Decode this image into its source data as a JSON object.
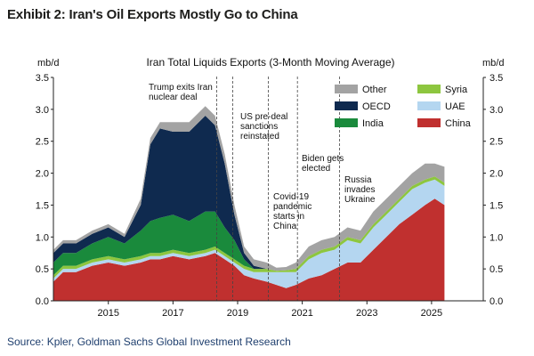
{
  "exhibit_title": "Exhibit 2: Iran's Oil Exports Mostly Go to China",
  "source": "Source: Kpler, Goldman Sachs Global Investment Research",
  "chart_data": {
    "type": "area",
    "title": "Iran Total Liquids Exports (3-Month Moving Average)",
    "ylabel_left": "mb/d",
    "ylabel_right": "mb/d",
    "ylim": [
      0,
      3.5
    ],
    "yticks": [
      0.0,
      0.5,
      1.0,
      1.5,
      2.0,
      2.5,
      3.0,
      3.5
    ],
    "ytick_labels": [
      "0.0",
      "0.5",
      "1.0",
      "1.5",
      "2.0",
      "2.5",
      "3.0",
      "3.5"
    ],
    "xlim": [
      2013.3,
      2026.6
    ],
    "xticks": [
      2015,
      2017,
      2019,
      2021,
      2023,
      2025
    ],
    "xtick_labels": [
      "2015",
      "2017",
      "2019",
      "2021",
      "2023",
      "2025"
    ],
    "stacked": true,
    "legend_placement": "top-right",
    "x": [
      2013.3,
      2013.6,
      2014.0,
      2014.5,
      2015.0,
      2015.5,
      2016.0,
      2016.3,
      2016.6,
      2017.0,
      2017.5,
      2018.0,
      2018.3,
      2018.6,
      2018.9,
      2019.2,
      2019.5,
      2019.9,
      2020.2,
      2020.5,
      2020.8,
      2021.2,
      2021.6,
      2022.0,
      2022.4,
      2022.8,
      2023.2,
      2023.6,
      2024.0,
      2024.4,
      2024.8,
      2025.1,
      2025.4
    ],
    "series": [
      {
        "name": "China",
        "color": "#c0302f",
        "values": [
          0.3,
          0.45,
          0.45,
          0.55,
          0.6,
          0.55,
          0.6,
          0.65,
          0.65,
          0.7,
          0.65,
          0.7,
          0.75,
          0.65,
          0.55,
          0.4,
          0.35,
          0.3,
          0.25,
          0.2,
          0.25,
          0.35,
          0.4,
          0.5,
          0.6,
          0.6,
          0.8,
          1.0,
          1.2,
          1.35,
          1.5,
          1.6,
          1.5
        ]
      },
      {
        "name": "UAE",
        "color": "#b4d6f0",
        "values": [
          0.05,
          0.05,
          0.05,
          0.05,
          0.05,
          0.05,
          0.05,
          0.05,
          0.05,
          0.05,
          0.05,
          0.05,
          0.05,
          0.05,
          0.05,
          0.1,
          0.1,
          0.15,
          0.2,
          0.25,
          0.2,
          0.3,
          0.35,
          0.3,
          0.35,
          0.3,
          0.35,
          0.35,
          0.35,
          0.4,
          0.35,
          0.3,
          0.3
        ]
      },
      {
        "name": "Syria",
        "color": "#8dc63f",
        "values": [
          0.05,
          0.05,
          0.05,
          0.05,
          0.05,
          0.05,
          0.05,
          0.05,
          0.05,
          0.05,
          0.05,
          0.05,
          0.05,
          0.05,
          0.05,
          0.05,
          0.05,
          0.05,
          0.02,
          0.03,
          0.05,
          0.05,
          0.05,
          0.05,
          0.05,
          0.05,
          0.05,
          0.05,
          0.05,
          0.05,
          0.05,
          0.05,
          0.05
        ]
      },
      {
        "name": "India",
        "color": "#1a8a3c",
        "values": [
          0.2,
          0.2,
          0.2,
          0.25,
          0.3,
          0.25,
          0.4,
          0.5,
          0.55,
          0.55,
          0.5,
          0.6,
          0.55,
          0.4,
          0.3,
          0.1,
          0.0,
          0.0,
          0.0,
          0.0,
          0.0,
          0.0,
          0.0,
          0.0,
          0.0,
          0.0,
          0.0,
          0.0,
          0.0,
          0.0,
          0.0,
          0.0,
          0.0
        ]
      },
      {
        "name": "OECD",
        "color": "#0f2a4f",
        "values": [
          0.15,
          0.15,
          0.15,
          0.15,
          0.15,
          0.1,
          0.4,
          1.2,
          1.4,
          1.3,
          1.4,
          1.5,
          1.35,
          1.0,
          0.4,
          0.1,
          0.05,
          0.0,
          0.0,
          0.0,
          0.0,
          0.0,
          0.0,
          0.0,
          0.0,
          0.0,
          0.0,
          0.0,
          0.0,
          0.0,
          0.0,
          0.0,
          0.0
        ]
      },
      {
        "name": "Other",
        "color": "#a3a3a3",
        "values": [
          0.05,
          0.05,
          0.05,
          0.05,
          0.05,
          0.05,
          0.1,
          0.1,
          0.1,
          0.15,
          0.15,
          0.15,
          0.15,
          0.15,
          0.15,
          0.1,
          0.1,
          0.1,
          0.05,
          0.05,
          0.1,
          0.15,
          0.15,
          0.15,
          0.15,
          0.15,
          0.2,
          0.2,
          0.2,
          0.2,
          0.25,
          0.2,
          0.25
        ]
      }
    ],
    "events": [
      {
        "x": 2018.35,
        "label": [
          "Trump exits Iran",
          "nuclear deal"
        ]
      },
      {
        "x": 2018.85,
        "label": [
          "US pre-deal",
          "sanctions",
          "reinstated"
        ]
      },
      {
        "x": 2019.95,
        "label": [
          "Covid-19",
          "pandemic",
          "starts in",
          "China"
        ]
      },
      {
        "x": 2020.85,
        "label": [
          "Biden gets",
          "elected"
        ]
      },
      {
        "x": 2022.15,
        "label": [
          "Russia",
          "invades",
          "Ukraine"
        ]
      }
    ],
    "legend_order": [
      "Other",
      "Syria",
      "OECD",
      "UAE",
      "India",
      "China"
    ]
  }
}
